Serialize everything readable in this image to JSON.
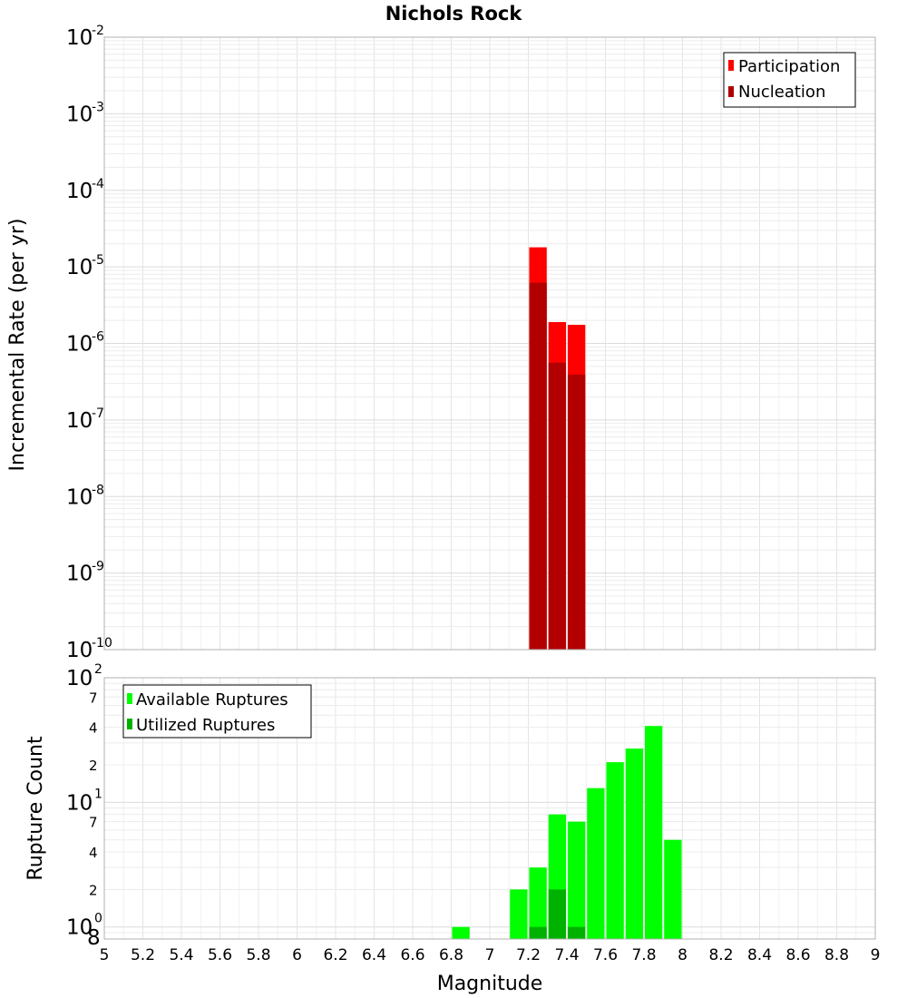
{
  "chart_data": [
    {
      "type": "bar",
      "title": "Nichols Rock",
      "xlabel": "Magnitude",
      "ylabel": "Incremental Rate (per yr)",
      "yscale": "log",
      "xlim": [
        5,
        9
      ],
      "ylim": [
        1e-10,
        0.01
      ],
      "y_tick_bases": [
        "10",
        "10",
        "10",
        "10",
        "10",
        "10",
        "10",
        "10",
        "10"
      ],
      "y_tick_exponents": [
        "-10",
        "-9",
        "-8",
        "-7",
        "-6",
        "-5",
        "-4",
        "-3",
        "-2"
      ],
      "legend": [
        "Participation",
        "Nucleation"
      ],
      "colors": {
        "Participation": "#ff0000",
        "Nucleation": "#b20000"
      },
      "series": [
        {
          "name": "Participation",
          "x": [
            7.25,
            7.35,
            7.45
          ],
          "values": [
            1.8e-05,
            1.9e-06,
            1.75e-06
          ]
        },
        {
          "name": "Nucleation",
          "x": [
            7.25,
            7.35,
            7.45
          ],
          "values": [
            6.2e-06,
            5.6e-07,
            3.9e-07
          ]
        }
      ]
    },
    {
      "type": "bar",
      "xlabel": "Magnitude",
      "ylabel": "Rupture Count",
      "yscale": "log",
      "xlim": [
        5,
        9
      ],
      "ylim": [
        0.8,
        100
      ],
      "x_tick_labels": [
        "5",
        "5.2",
        "5.4",
        "5.6",
        "5.8",
        "6",
        "6.2",
        "6.4",
        "6.6",
        "6.8",
        "7",
        "7.2",
        "7.4",
        "7.6",
        "7.8",
        "8",
        "8.2",
        "8.4",
        "8.6",
        "8.8",
        "9"
      ],
      "y_major_bases": [
        "10",
        "10",
        "10"
      ],
      "y_major_exponents": [
        "0",
        "1",
        "2"
      ],
      "y_minor_labels": [
        {
          "value": 0.8,
          "label": "8"
        },
        {
          "value": 2,
          "label": "2"
        },
        {
          "value": 4,
          "label": "4"
        },
        {
          "value": 7,
          "label": "7"
        },
        {
          "value": 20,
          "label": "2"
        },
        {
          "value": 40,
          "label": "4"
        },
        {
          "value": 70,
          "label": "7"
        }
      ],
      "legend": [
        "Available Ruptures",
        "Utilized Ruptures"
      ],
      "colors": {
        "Available Ruptures": "#00ff00",
        "Utilized Ruptures": "#00b200"
      },
      "series": [
        {
          "name": "Available Ruptures",
          "x": [
            6.85,
            7.15,
            7.25,
            7.35,
            7.45,
            7.55,
            7.65,
            7.75,
            7.85,
            7.95
          ],
          "values": [
            1,
            2,
            3,
            8,
            7,
            13,
            21,
            27,
            41,
            5
          ]
        },
        {
          "name": "Utilized Ruptures",
          "x": [
            7.25,
            7.35,
            7.45
          ],
          "values": [
            1,
            2,
            1
          ]
        }
      ]
    }
  ]
}
